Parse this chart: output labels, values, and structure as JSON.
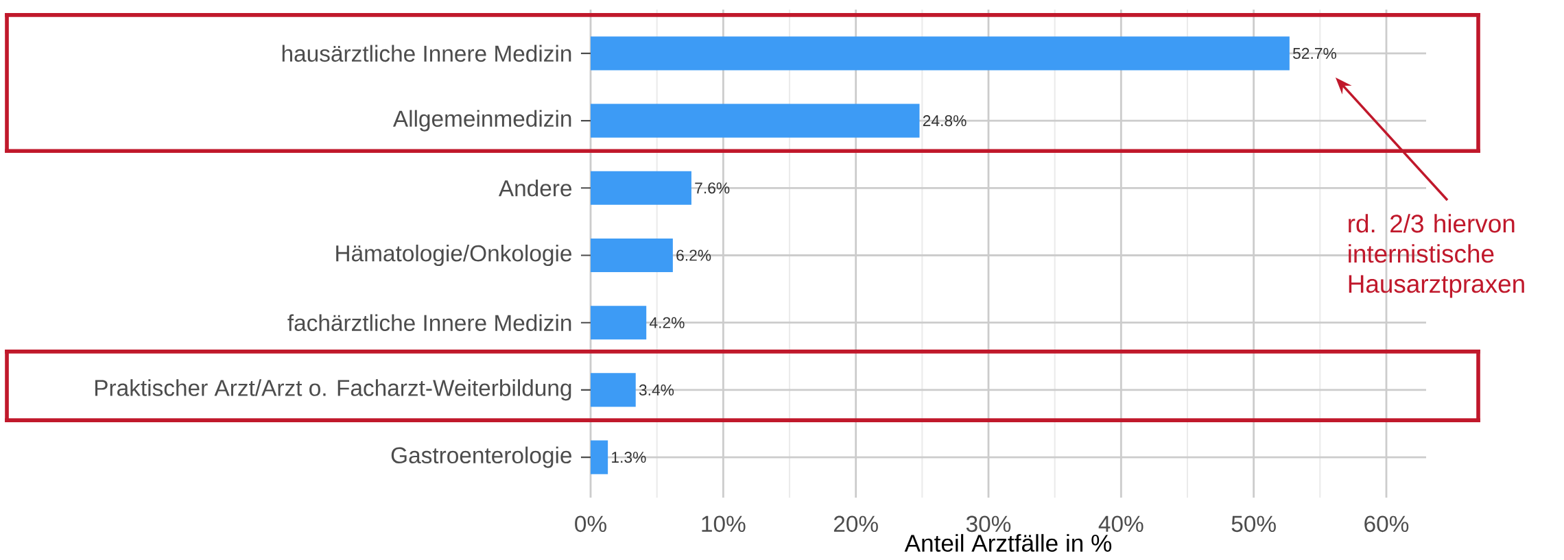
{
  "chart_data": {
    "type": "bar",
    "orientation": "horizontal",
    "xlabel": "Anteil Arztfälle in %",
    "categories": [
      "hausärztliche Innere Medizin",
      "Allgemeinmedizin",
      "Andere",
      "Hämatologie/Onkologie",
      "fachärztliche Innere Medizin",
      "Praktischer Arzt/Arzt o. Facharzt-Weiterbildung",
      "Gastroenterologie"
    ],
    "values": [
      52.7,
      24.8,
      7.6,
      6.2,
      4.2,
      3.4,
      1.3
    ],
    "value_labels": [
      "52.7%",
      "24.8%",
      "7.6%",
      "6.2%",
      "4.2%",
      "3.4%",
      "1.3%"
    ],
    "color": "#3d9bf5",
    "xlim": [
      0,
      63
    ],
    "xticks": [
      {
        "value": 0,
        "label": "0%"
      },
      {
        "value": 5,
        "label": null
      },
      {
        "value": 10,
        "label": "10%"
      },
      {
        "value": 15,
        "label": null
      },
      {
        "value": 20,
        "label": "20%"
      },
      {
        "value": 25,
        "label": null
      },
      {
        "value": 30,
        "label": "30%"
      },
      {
        "value": 35,
        "label": null
      },
      {
        "value": 40,
        "label": "40%"
      },
      {
        "value": 45,
        "label": null
      },
      {
        "value": 50,
        "label": "50%"
      },
      {
        "value": 55,
        "label": null
      },
      {
        "value": 60,
        "label": "60%"
      }
    ],
    "grid": true,
    "annotations": [
      "rd. 2/3 hiervon internistische Hausarztpraxen"
    ]
  }
}
